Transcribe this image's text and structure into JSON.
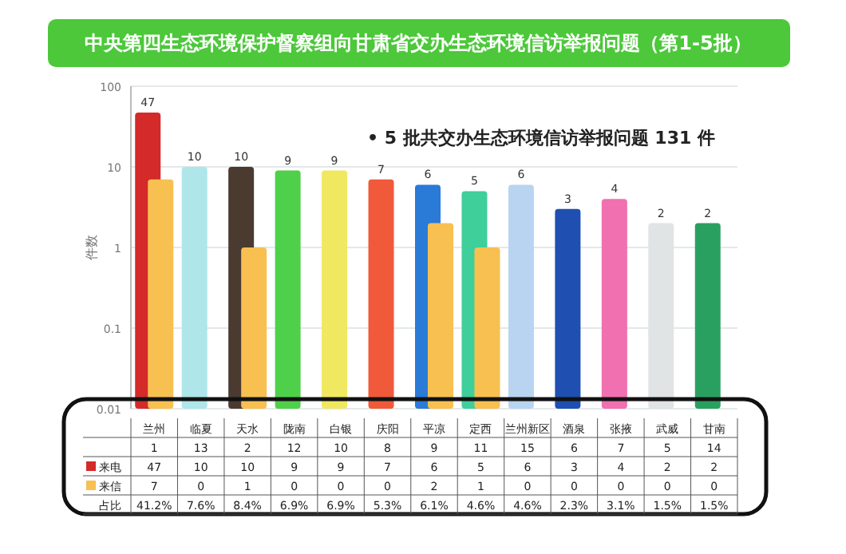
{
  "chart_data": {
    "type": "bar",
    "title": "中央第四生态环境保护督察组向甘肃省交办生态环境信访举报问题（第1-5批）",
    "ylabel": "件数",
    "log": true,
    "grid": "y",
    "legend": "bottom left",
    "ylim": [
      0.01,
      100
    ],
    "yticks": [
      0.01,
      0.1,
      1,
      10,
      100
    ],
    "categories": [
      "兰州",
      "临夏",
      "天水",
      "陇南",
      "白银",
      "庆阳",
      "平凉",
      "定西",
      "兰州新区",
      "酒泉",
      "张掖",
      "武威",
      "甘南"
    ],
    "series": [
      {
        "name": "来电",
        "colors": [
          "#d42a2a",
          "#aee6ea",
          "#4a3a30",
          "#4fd04a",
          "#f0e860",
          "#f05a3a",
          "#2a7ad8",
          "#3fcf9a",
          "#b8d4f0",
          "#1f4fb0",
          "#f070b0",
          "#e0e4e4",
          "#2aa060"
        ],
        "values": [
          47,
          10,
          10,
          9,
          9,
          7,
          6,
          5,
          6,
          3,
          4,
          2,
          2
        ],
        "value_labels": [
          "47",
          "10",
          "10",
          "9",
          "9",
          "7",
          "6",
          "5",
          "6",
          "3",
          "4",
          "2",
          "2"
        ]
      },
      {
        "name": "来信",
        "color": "#f8c050",
        "values": [
          7,
          null,
          1,
          null,
          null,
          null,
          2,
          1,
          null,
          null,
          null,
          null,
          null
        ],
        "value_labels": [
          "7",
          "0",
          "1",
          "0",
          "0",
          "0",
          "2",
          "1",
          "0",
          "0",
          "0",
          "0",
          "0"
        ]
      }
    ],
    "annotations": [
      "• 5 批共交办生态环境信访举报问题 131 件",
      "占比",
      "1",
      "13",
      "2",
      "12",
      "10",
      "8",
      "9",
      "11",
      "15",
      "6",
      "7",
      "5",
      "14",
      "41.2%",
      "7.6%",
      "8.4%",
      "6.9%",
      "6.9%",
      "5.3%",
      "6.1%",
      "4.6%",
      "4.6%",
      "2.3%",
      "3.1%",
      "1.5%",
      "1.5%"
    ]
  }
}
